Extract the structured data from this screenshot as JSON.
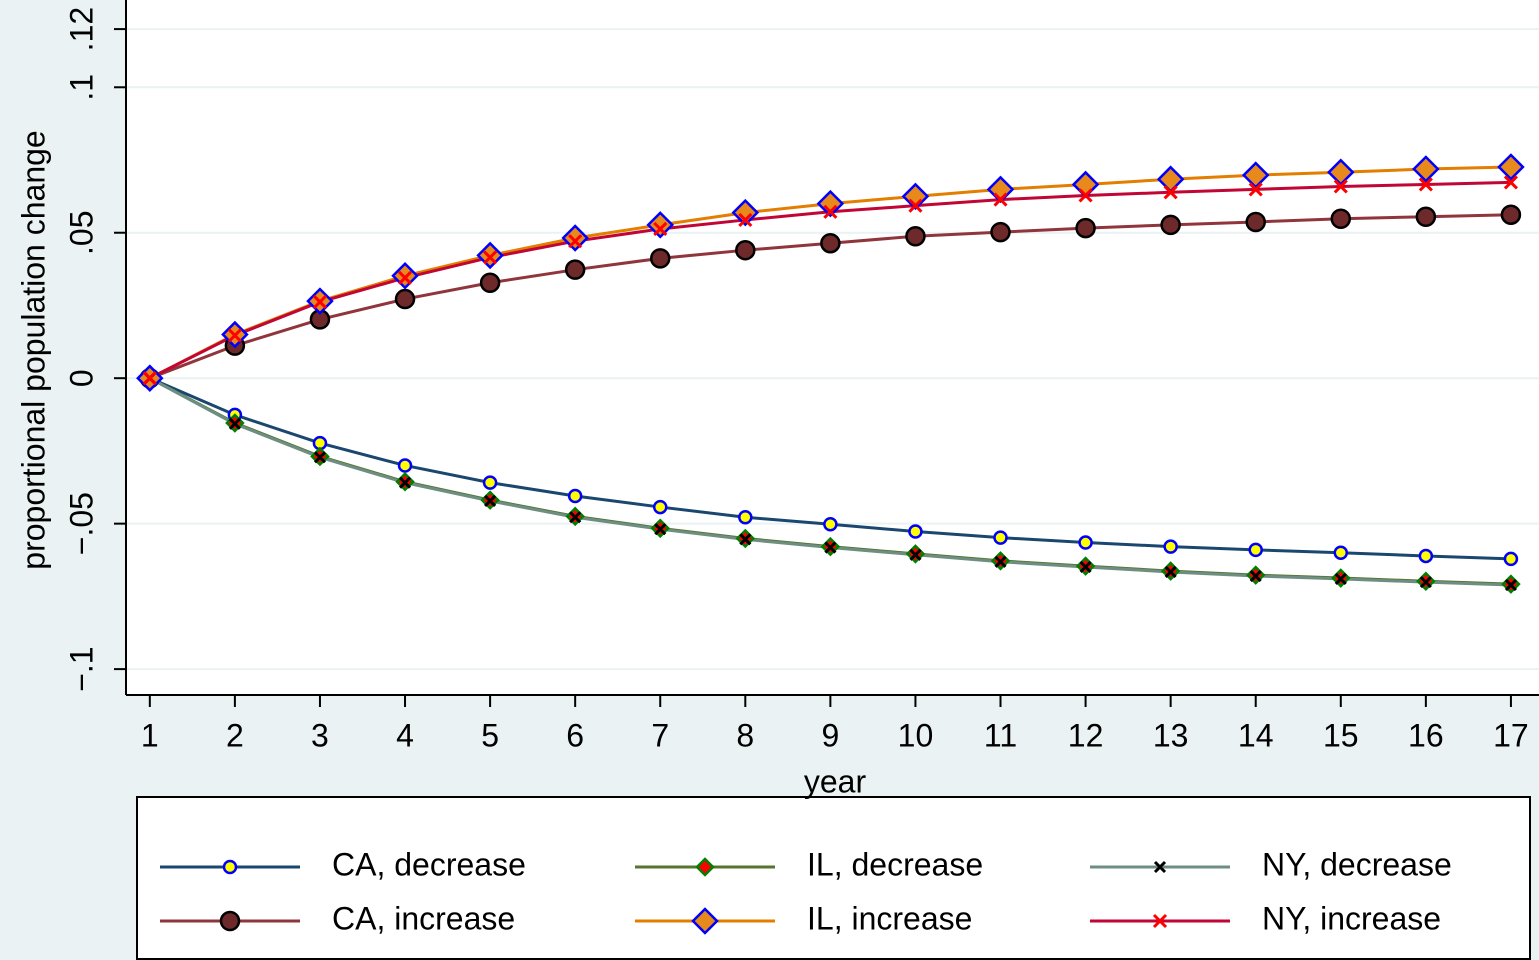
{
  "chart_data": {
    "type": "line",
    "x_label": "year",
    "y_label": "proportional population change",
    "x": [
      1,
      2,
      3,
      4,
      5,
      6,
      7,
      8,
      9,
      10,
      11,
      12,
      13,
      14,
      15,
      16,
      17
    ],
    "xlim": [
      0.72,
      17.33
    ],
    "xticks": [
      1,
      2,
      3,
      4,
      5,
      6,
      7,
      8,
      9,
      10,
      11,
      12,
      13,
      14,
      15,
      16,
      17
    ],
    "ylim": [
      -0.1089,
      0.13
    ],
    "yticks": [
      {
        "value": -0.1,
        "label": "−.1"
      },
      {
        "value": -0.05,
        "label": "−.05"
      },
      0,
      {
        "value": 0.05,
        "label": ".05"
      },
      {
        "value": 0.1,
        "label": ".1"
      },
      {
        "value": 0.12,
        "label": ".12"
      }
    ],
    "grid": true,
    "series": [
      {
        "name": "CA, decrease",
        "color": "#1a476f",
        "marker": "circle",
        "marker_fill": "#ffff00",
        "marker_edge": "#0000ff",
        "marker_size": 6,
        "values": [
          0,
          -0.0126,
          -0.0223,
          -0.03,
          -0.0359,
          -0.0405,
          -0.0443,
          -0.0478,
          -0.0502,
          -0.0527,
          -0.0548,
          -0.0565,
          -0.0579,
          -0.059,
          -0.06,
          -0.0611,
          -0.0621
        ]
      },
      {
        "name": "CA, increase",
        "color": "#90353b",
        "marker": "circle",
        "marker_fill": "#6e2a2a",
        "marker_edge": "#000000",
        "marker_size": 9,
        "values": [
          0,
          0.0112,
          0.0202,
          0.0272,
          0.0328,
          0.0373,
          0.0412,
          0.044,
          0.0464,
          0.0488,
          0.0502,
          0.0516,
          0.0527,
          0.0537,
          0.0548,
          0.0555,
          0.0562
        ]
      },
      {
        "name": "IL, decrease",
        "color": "#55752f",
        "marker": "diamond",
        "marker_fill": "#ff0000",
        "marker_edge": "#008000",
        "marker_size": 8,
        "values": [
          0,
          -0.0154,
          -0.0269,
          -0.0356,
          -0.0419,
          -0.0475,
          -0.0516,
          -0.0551,
          -0.0579,
          -0.0604,
          -0.0628,
          -0.0646,
          -0.0663,
          -0.0677,
          -0.0687,
          -0.0698,
          -0.0708
        ]
      },
      {
        "name": "IL, increase",
        "color": "#e37e00",
        "marker": "diamond",
        "marker_fill": "#e8891c",
        "marker_edge": "#0000ff",
        "marker_size": 12,
        "values": [
          0,
          0.015,
          0.0265,
          0.0352,
          0.0422,
          0.0482,
          0.0527,
          0.0569,
          0.06,
          0.0625,
          0.0649,
          0.0666,
          0.0684,
          0.0698,
          0.0708,
          0.0719,
          0.0726
        ]
      },
      {
        "name": "NY, decrease",
        "color": "#6e8e84",
        "marker": "x",
        "marker_fill": "none",
        "marker_edge": "#000000",
        "marker_size": 5,
        "values": [
          0,
          -0.0157,
          -0.0272,
          -0.0359,
          -0.0422,
          -0.0478,
          -0.0519,
          -0.0554,
          -0.0582,
          -0.0607,
          -0.0631,
          -0.0649,
          -0.0666,
          -0.068,
          -0.069,
          -0.0701,
          -0.0711
        ]
      },
      {
        "name": "NY, increase",
        "color": "#c10534",
        "marker": "x",
        "marker_fill": "none",
        "marker_edge": "#ff0000",
        "marker_size": 6,
        "values": [
          0,
          0.0147,
          0.0262,
          0.0345,
          0.0415,
          0.0471,
          0.0513,
          0.0544,
          0.0572,
          0.0593,
          0.0614,
          0.0628,
          0.0639,
          0.0649,
          0.0659,
          0.0666,
          0.0673
        ]
      }
    ]
  }
}
